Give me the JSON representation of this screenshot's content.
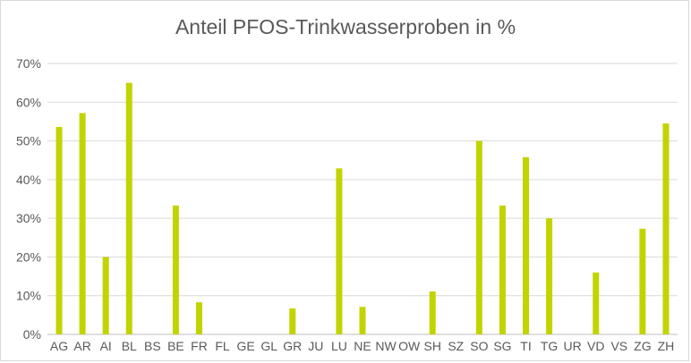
{
  "chart_data": {
    "type": "bar",
    "title": "Anteil PFOS-Trinkwasserproben in %",
    "categories": [
      "AG",
      "AR",
      "AI",
      "BL",
      "BS",
      "BE",
      "FR",
      "FL",
      "GE",
      "GL",
      "GR",
      "JU",
      "LU",
      "NE",
      "NW",
      "OW",
      "SH",
      "SZ",
      "SO",
      "SG",
      "TI",
      "TG",
      "UR",
      "VD",
      "VS",
      "ZG",
      "ZH"
    ],
    "values": [
      53.6,
      57.2,
      20,
      65,
      0,
      33.3,
      8.3,
      0,
      0,
      0,
      6.7,
      0,
      42.9,
      7.1,
      0,
      0,
      11.1,
      0,
      50,
      33.3,
      45.8,
      30,
      0,
      16,
      0,
      27.3,
      54.5
    ],
    "yticks": [
      "0%",
      "10%",
      "20%",
      "30%",
      "40%",
      "50%",
      "60%",
      "70%"
    ],
    "ylim": [
      0,
      70
    ],
    "grid": true,
    "legend": "none",
    "bar_color": "#c2d400",
    "xlabel": "",
    "ylabel": ""
  }
}
